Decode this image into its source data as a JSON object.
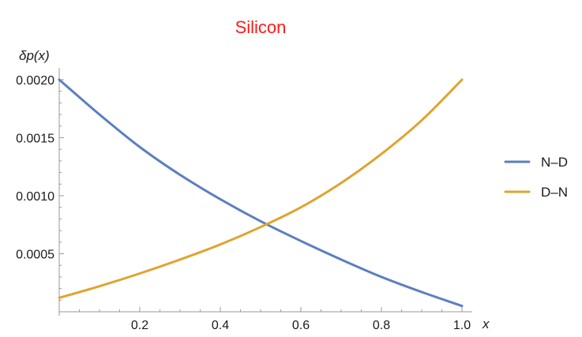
{
  "chart_data": {
    "type": "line",
    "title": "Silicon",
    "xlabel": "x",
    "ylabel": "δp(x)",
    "xlim": [
      0,
      1.0
    ],
    "ylim": [
      0,
      0.0021
    ],
    "x_ticks": [
      0.2,
      0.4,
      0.6,
      0.8,
      1.0
    ],
    "x_tick_labels": [
      "0.2",
      "0.4",
      "0.6",
      "0.8",
      "1.0"
    ],
    "y_ticks": [
      0.0005,
      0.001,
      0.0015,
      0.002
    ],
    "y_tick_labels": [
      "0.0005",
      "0.0010",
      "0.0015",
      "0.0020"
    ],
    "legend_position": "right",
    "grid": false,
    "series": [
      {
        "name": "N–D",
        "color": "#5b7fbf",
        "x": [
          0,
          0.1,
          0.2,
          0.3,
          0.4,
          0.5,
          0.6,
          0.7,
          0.8,
          0.9,
          1.0
        ],
        "y": [
          0.002,
          0.0017,
          0.00142,
          0.00118,
          0.00097,
          0.00078,
          0.00061,
          0.00045,
          0.0003,
          0.00017,
          5e-05
        ]
      },
      {
        "name": "D–N",
        "color": "#e0a32e",
        "x": [
          0,
          0.1,
          0.2,
          0.3,
          0.4,
          0.5,
          0.6,
          0.7,
          0.8,
          0.9,
          1.0
        ],
        "y": [
          0.00012,
          0.00022,
          0.00033,
          0.00045,
          0.00058,
          0.00073,
          0.0009,
          0.00111,
          0.00136,
          0.00165,
          0.002
        ]
      }
    ]
  }
}
